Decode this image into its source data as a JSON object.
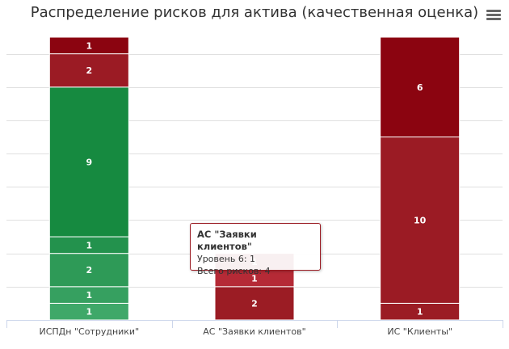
{
  "title": "Распределение рисков для актива (качественная оценка)",
  "menu_icon": "hamburger-menu-icon",
  "chart_data": {
    "type": "bar",
    "stacked": true,
    "title": "Распределение рисков для актива (качественная оценка)",
    "categories": [
      "ИСПДн \"Сотрудники\"",
      "АС \"Заявки клиентов\"",
      "ИС \"Клиенты\""
    ],
    "ylim": [
      0,
      17
    ],
    "grid": true,
    "series": [
      {
        "color": "#3fa869",
        "values": [
          1,
          0,
          0
        ]
      },
      {
        "color": "#36a060",
        "values": [
          1,
          0,
          0
        ]
      },
      {
        "color": "#2e9a57",
        "values": [
          2,
          0,
          0
        ]
      },
      {
        "color": "#23924d",
        "values": [
          1,
          0,
          0
        ]
      },
      {
        "color": "#168a40",
        "values": [
          9,
          0,
          0
        ]
      },
      {
        "color": "#9b1c24",
        "values": [
          0,
          2,
          1
        ]
      },
      {
        "color": "#b52a36",
        "values": [
          0,
          1,
          0
        ]
      },
      {
        "color": "#9b1b24",
        "values": [
          2,
          0,
          10
        ]
      },
      {
        "color": "#8b0410",
        "values": [
          1,
          1,
          6
        ]
      }
    ]
  },
  "tooltip": {
    "title": "АС \"Заявки клиентов\"",
    "line1": "Уровень 6: 1",
    "line2": "Всего рисков: 4"
  }
}
